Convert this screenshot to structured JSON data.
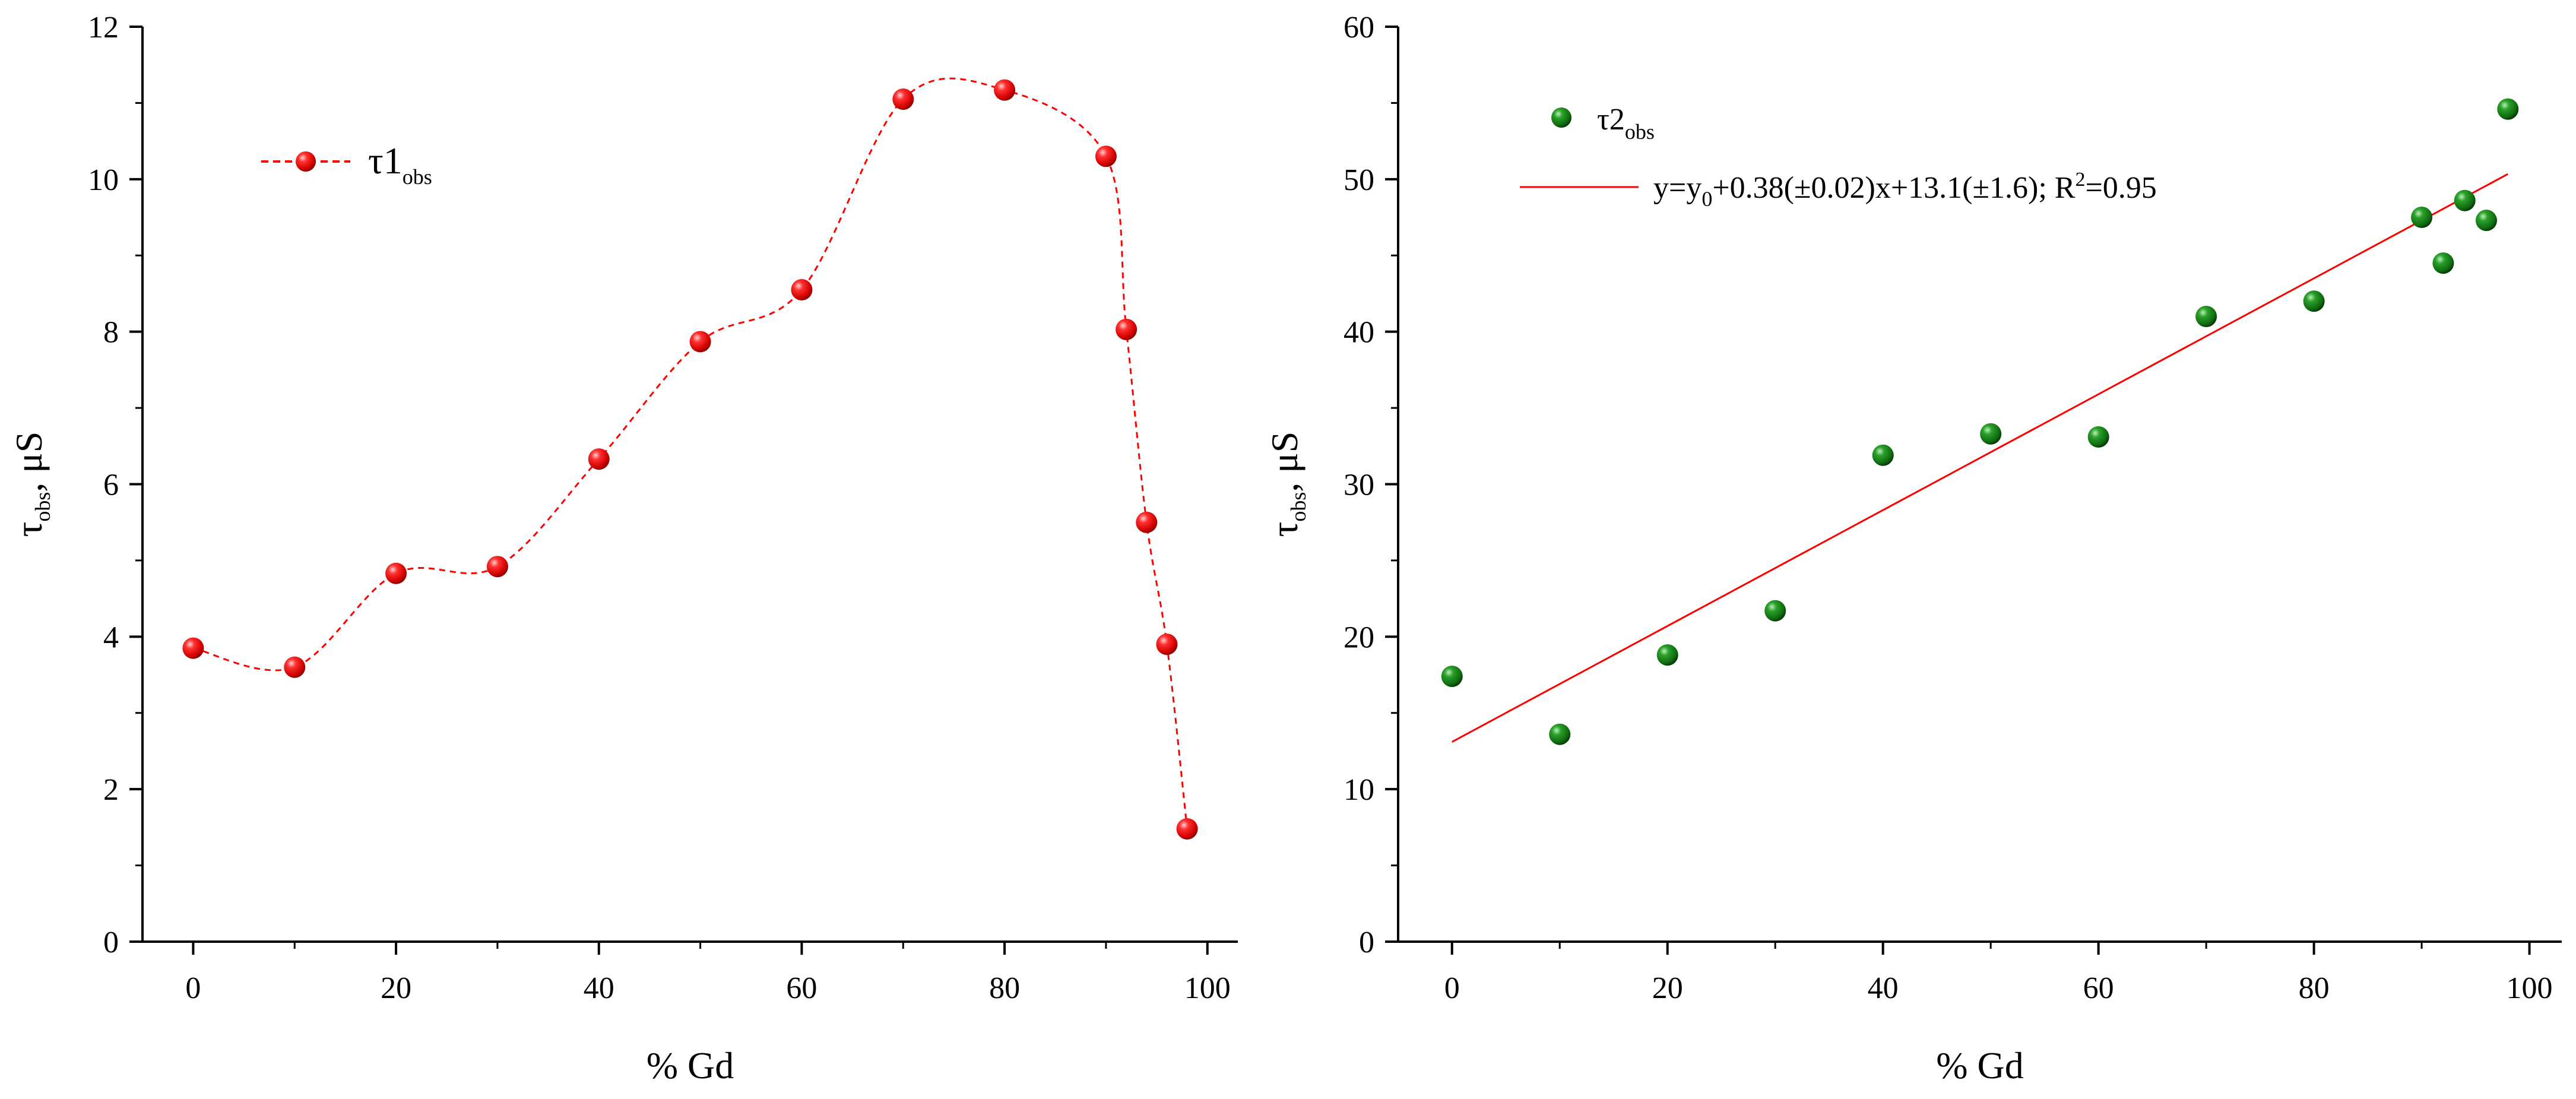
{
  "chart_data": [
    {
      "type": "line",
      "x": [
        0,
        10,
        20,
        30,
        40,
        50,
        60,
        70,
        80,
        90,
        92,
        94,
        96,
        98
      ],
      "series": [
        {
          "name": "τ1obs",
          "values": [
            3.85,
            3.6,
            4.83,
            4.92,
            6.33,
            7.87,
            8.55,
            11.05,
            11.17,
            10.3,
            8.03,
            5.5,
            3.9,
            1.48
          ],
          "color": "#ff0000",
          "marker": "sphere",
          "line_style": "dashed"
        }
      ],
      "legend": {
        "symbol": "τ1",
        "subscript": "obs",
        "position": "top-left"
      },
      "xlabel": "% Gd",
      "ylabel": {
        "main": "τ",
        "subscript": "obs",
        "rest": ", μS"
      },
      "xlim": [
        -5,
        103
      ],
      "ylim": [
        0,
        12
      ],
      "xticks": [
        0,
        20,
        40,
        60,
        80,
        100
      ],
      "yticks": [
        0,
        2,
        4,
        6,
        8,
        10,
        12
      ],
      "grid": false
    },
    {
      "type": "scatter",
      "x": [
        0,
        10,
        20,
        30,
        40,
        50,
        60,
        70,
        80,
        90,
        92,
        94,
        96,
        98
      ],
      "series": [
        {
          "name": "τ2obs",
          "values": [
            17.4,
            13.6,
            18.8,
            21.7,
            31.9,
            33.3,
            33.1,
            41.0,
            42.0,
            47.5,
            44.5,
            48.6,
            47.3,
            54.6
          ],
          "color": "#1a8a1a",
          "marker": "sphere"
        }
      ],
      "fit": {
        "label_pre": "y=y",
        "label_sub": "0",
        "label_mid": "+0.38(±0.02)x+13.1(±1.6); R",
        "label_sup": "2",
        "label_post": "=0.95",
        "slope": 0.38,
        "intercept": 13.1,
        "x_range": [
          0,
          98
        ],
        "color": "#ff0000"
      },
      "legend": {
        "symbol": "τ2",
        "subscript": "obs",
        "position": "top-left"
      },
      "xlabel": "% Gd",
      "ylabel": {
        "main": "τ",
        "subscript": "obs",
        "rest": ", μS"
      },
      "xlim": [
        -5,
        103
      ],
      "ylim": [
        0,
        60
      ],
      "xticks": [
        0,
        20,
        40,
        60,
        80,
        100
      ],
      "yticks": [
        0,
        10,
        20,
        30,
        40,
        50,
        60
      ],
      "grid": false
    }
  ]
}
